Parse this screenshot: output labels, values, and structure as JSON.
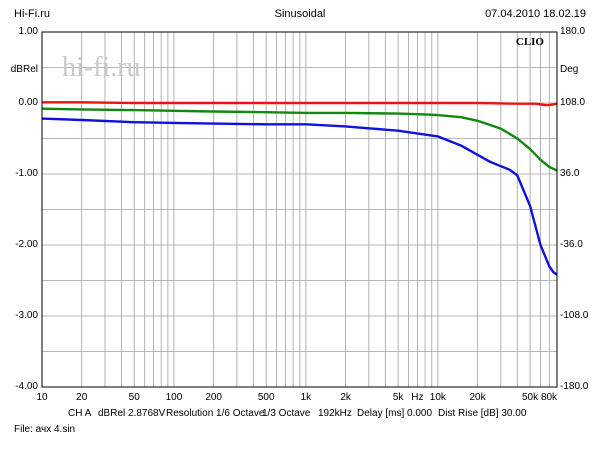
{
  "header": {
    "left": "Hi-Fi.ru",
    "center": "Sinusoidal",
    "right": "07.04.2010 18.02.19"
  },
  "watermark": "hi-fi.ru",
  "brand": "CLIO",
  "left_unit": "dBRel",
  "right_unit": "Deg",
  "y_left_ticks": [
    "1.00",
    "0.00",
    "-1.00",
    "-2.00",
    "-3.00",
    "-4.00"
  ],
  "y_right_ticks": [
    "180.0",
    "108.0",
    "36.0",
    "-36.0",
    "-108.0",
    "-180.0"
  ],
  "x_ticks": [
    {
      "value": 10,
      "label": "10"
    },
    {
      "value": 20,
      "label": "20"
    },
    {
      "value": 50,
      "label": "50"
    },
    {
      "value": 100,
      "label": "100"
    },
    {
      "value": 200,
      "label": "200"
    },
    {
      "value": 500,
      "label": "500"
    },
    {
      "value": 1000,
      "label": "1k"
    },
    {
      "value": 2000,
      "label": "2k"
    },
    {
      "value": 5000,
      "label": "5k"
    },
    {
      "value": 7000,
      "label": "Hz"
    },
    {
      "value": 10000,
      "label": "10k"
    },
    {
      "value": 20000,
      "label": "20k"
    },
    {
      "value": 50000,
      "label": "50k"
    },
    {
      "value": 80000,
      "label": "80k"
    }
  ],
  "footer": {
    "channel": "CH A",
    "unit": "dBRel 2.8768V",
    "resolution": "Resolution 1/6 Octave",
    "octave": "1/3 Octave",
    "rate": "192kHz",
    "delay": "Delay [ms] 0.000",
    "dist": "Dist Rise [dB] 30.00",
    "file": "File: ачх 4.sin"
  },
  "colors": {
    "grid": "#a0a0a0",
    "red": "#ee1111",
    "green": "#118811",
    "blue": "#1111dd",
    "watermark": "#c9c9c9"
  },
  "chart_data": {
    "type": "line",
    "x_scale": "log",
    "xlim": [
      10,
      80000
    ],
    "ylim": [
      -4,
      1
    ],
    "y2lim": [
      -180,
      180
    ],
    "grid": true,
    "series": [
      {
        "color": "red",
        "x": [
          10,
          20,
          50,
          100,
          200,
          500,
          1000,
          2000,
          5000,
          10000,
          20000,
          40000,
          55000,
          65000,
          70000,
          75000,
          80000
        ],
        "y": [
          0.01,
          0.01,
          0.0,
          0.0,
          0.0,
          0.0,
          0.0,
          0.0,
          0.0,
          0.0,
          0.0,
          -0.01,
          -0.01,
          -0.03,
          -0.03,
          -0.02,
          -0.01
        ]
      },
      {
        "color": "green",
        "x": [
          10,
          20,
          50,
          100,
          200,
          500,
          1000,
          2000,
          5000,
          8000,
          10000,
          15000,
          20000,
          30000,
          40000,
          50000,
          60000,
          70000,
          80000
        ],
        "y": [
          -0.08,
          -0.09,
          -0.1,
          -0.11,
          -0.12,
          -0.13,
          -0.14,
          -0.14,
          -0.15,
          -0.16,
          -0.17,
          -0.2,
          -0.25,
          -0.36,
          -0.5,
          -0.65,
          -0.8,
          -0.9,
          -0.95
        ]
      },
      {
        "color": "blue",
        "x": [
          10,
          20,
          50,
          100,
          200,
          500,
          1000,
          2000,
          5000,
          10000,
          15000,
          20000,
          25000,
          30000,
          35000,
          40000,
          50000,
          60000,
          70000,
          75000,
          80000
        ],
        "y": [
          -0.22,
          -0.24,
          -0.27,
          -0.28,
          -0.29,
          -0.3,
          -0.3,
          -0.33,
          -0.39,
          -0.47,
          -0.6,
          -0.73,
          -0.83,
          -0.89,
          -0.94,
          -1.02,
          -1.45,
          -2.0,
          -2.3,
          -2.38,
          -2.42
        ]
      }
    ]
  }
}
